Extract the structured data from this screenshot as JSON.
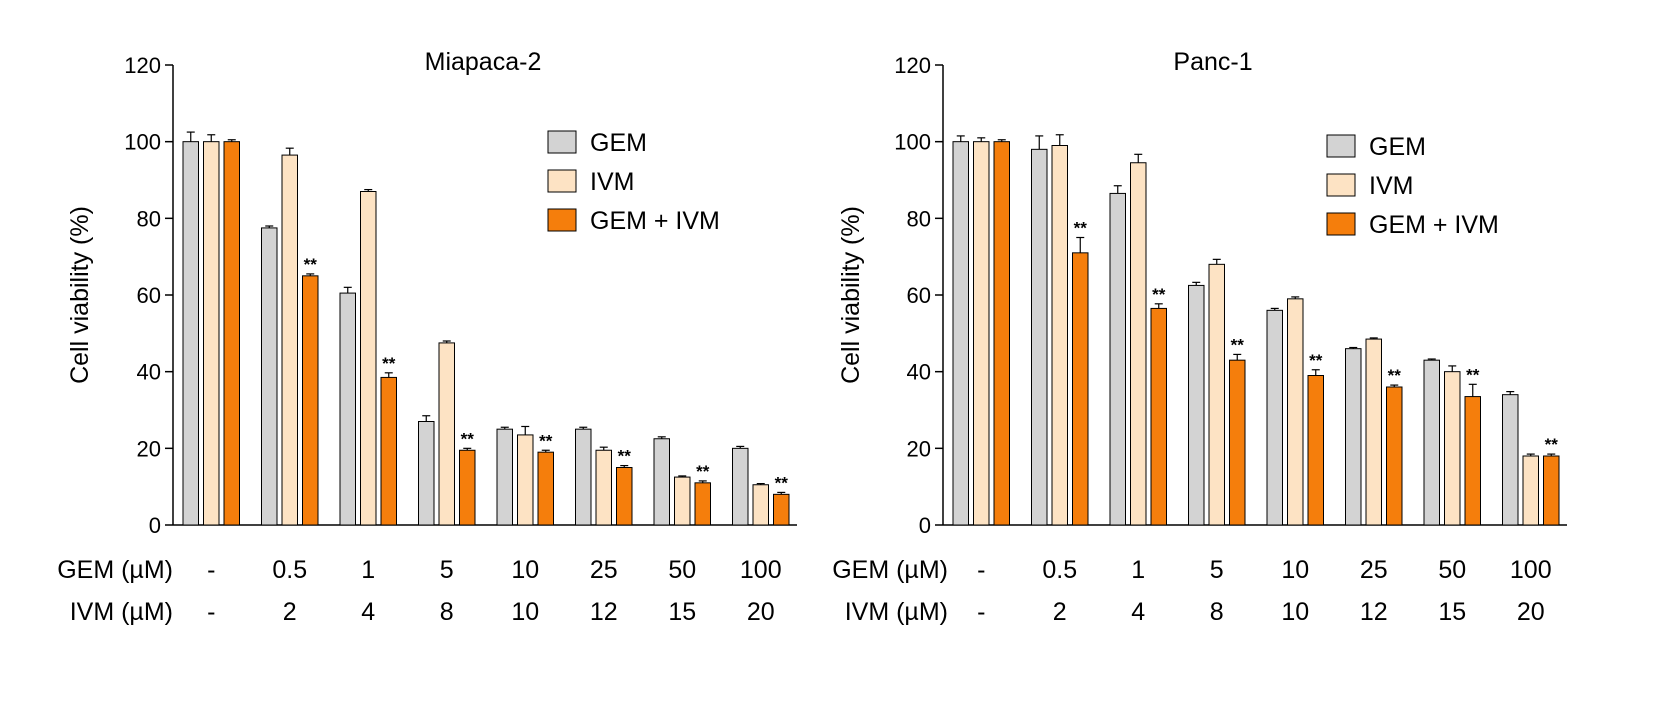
{
  "chart_data": [
    {
      "type": "bar",
      "title": "Miapaca-2",
      "xlabel": "",
      "ylabel": "Cell viability (%)",
      "ylim": [
        0,
        120
      ],
      "yticks": [
        "0",
        "20",
        "40",
        "60",
        "80",
        "100",
        "120"
      ],
      "ytick_values": [
        0,
        20,
        40,
        60,
        80,
        100,
        120
      ],
      "categories": [
        "-",
        "0.5/2",
        "1/4",
        "5/8",
        "10/10",
        "25/12",
        "50/15",
        "100/20"
      ],
      "row_labels": {
        "gem": "GEM (µM)",
        "ivm": "IVM (µM)"
      },
      "gem_doses": [
        "-",
        "0.5",
        "1",
        "5",
        "10",
        "25",
        "50",
        "100"
      ],
      "ivm_doses": [
        "-",
        "2",
        "4",
        "8",
        "10",
        "12",
        "15",
        "20"
      ],
      "legend_position": "top-right",
      "significance_label": "**",
      "series": [
        {
          "name": "GEM",
          "color": "#d3d3d3",
          "values": [
            100,
            77.5,
            60.5,
            27,
            25,
            25,
            22.5,
            20
          ],
          "errors": [
            2.5,
            0.5,
            1.5,
            1.5,
            0.5,
            0.5,
            0.5,
            0.5
          ],
          "significant": [
            false,
            false,
            false,
            false,
            false,
            false,
            false,
            false
          ]
        },
        {
          "name": "IVM",
          "color": "#fde3c4",
          "values": [
            100,
            96.5,
            87,
            47.5,
            23.5,
            19.5,
            12.5,
            10.5
          ],
          "errors": [
            1.8,
            1.8,
            0.5,
            0.5,
            2.2,
            0.8,
            0.3,
            0.3
          ],
          "significant": [
            false,
            false,
            false,
            false,
            false,
            false,
            false,
            false
          ]
        },
        {
          "name": "GEM + IVM",
          "color": "#f57e0c",
          "values": [
            100,
            65,
            38.5,
            19.5,
            19,
            15,
            11,
            8
          ],
          "errors": [
            0.5,
            0.5,
            1.2,
            0.5,
            0.5,
            0.5,
            0.5,
            0.5
          ],
          "significant": [
            false,
            true,
            true,
            true,
            true,
            true,
            true,
            true
          ]
        }
      ]
    },
    {
      "type": "bar",
      "title": "Panc-1",
      "xlabel": "",
      "ylabel": "Cell viability (%)",
      "ylim": [
        0,
        120
      ],
      "yticks": [
        "0",
        "20",
        "40",
        "60",
        "80",
        "100",
        "120"
      ],
      "ytick_values": [
        0,
        20,
        40,
        60,
        80,
        100,
        120
      ],
      "categories": [
        "-",
        "0.5/2",
        "1/4",
        "5/8",
        "10/10",
        "25/12",
        "50/15",
        "100/20"
      ],
      "row_labels": {
        "gem": "GEM (µM)",
        "ivm": "IVM (µM)"
      },
      "gem_doses": [
        "-",
        "0.5",
        "1",
        "5",
        "10",
        "25",
        "50",
        "100"
      ],
      "ivm_doses": [
        "-",
        "2",
        "4",
        "8",
        "10",
        "12",
        "15",
        "20"
      ],
      "legend_position": "top-right",
      "significance_label": "**",
      "series": [
        {
          "name": "GEM",
          "color": "#d3d3d3",
          "values": [
            100,
            98,
            86.5,
            62.5,
            56,
            46,
            43,
            34
          ],
          "errors": [
            1.5,
            3.5,
            2,
            0.8,
            0.5,
            0.3,
            0.3,
            0.8
          ],
          "significant": [
            false,
            false,
            false,
            false,
            false,
            false,
            false,
            false
          ]
        },
        {
          "name": "IVM",
          "color": "#fde3c4",
          "values": [
            100,
            99,
            94.5,
            68,
            59,
            48.5,
            40,
            18
          ],
          "errors": [
            1,
            2.8,
            2.2,
            1.3,
            0.5,
            0.3,
            1.5,
            0.5
          ],
          "significant": [
            false,
            false,
            false,
            false,
            false,
            false,
            false,
            false
          ]
        },
        {
          "name": "GEM + IVM",
          "color": "#f57e0c",
          "values": [
            100,
            71,
            56.5,
            43,
            39,
            36,
            33.5,
            18
          ],
          "errors": [
            0.5,
            4,
            1.2,
            1.5,
            1.5,
            0.5,
            3.2,
            0.5
          ],
          "significant": [
            false,
            true,
            true,
            true,
            true,
            true,
            true,
            true
          ]
        }
      ]
    }
  ]
}
